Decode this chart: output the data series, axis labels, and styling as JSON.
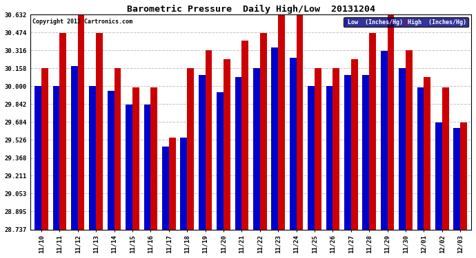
{
  "title": "Barometric Pressure  Daily High/Low  20131204",
  "copyright": "Copyright 2013 Cartronics.com",
  "categories": [
    "11/10",
    "11/11",
    "11/12",
    "11/13",
    "11/14",
    "11/15",
    "11/16",
    "11/17",
    "11/18",
    "11/19",
    "11/20",
    "11/21",
    "11/22",
    "11/23",
    "11/24",
    "11/25",
    "11/26",
    "11/27",
    "11/28",
    "11/29",
    "11/30",
    "12/01",
    "12/02",
    "12/03"
  ],
  "low_values": [
    30.0,
    30.0,
    30.18,
    30.0,
    29.96,
    29.84,
    29.84,
    29.47,
    29.55,
    30.1,
    29.95,
    30.08,
    30.16,
    30.34,
    30.25,
    30.0,
    30.0,
    30.1,
    30.1,
    30.31,
    30.16,
    29.99,
    29.68,
    29.63
  ],
  "high_values": [
    30.16,
    30.47,
    30.63,
    30.47,
    30.16,
    29.99,
    29.99,
    29.55,
    30.16,
    30.32,
    30.24,
    30.4,
    30.47,
    30.63,
    30.63,
    30.16,
    30.16,
    30.24,
    30.47,
    30.63,
    30.32,
    30.08,
    29.99,
    29.68
  ],
  "ylim": [
    28.737,
    30.632
  ],
  "yticks": [
    28.737,
    28.895,
    29.053,
    29.211,
    29.368,
    29.526,
    29.684,
    29.842,
    30.0,
    30.158,
    30.316,
    30.474,
    30.632
  ],
  "low_color": "#0000cc",
  "high_color": "#cc0000",
  "bg_color": "#ffffff",
  "grid_color": "#bbbbbb",
  "title_fontsize": 9.5,
  "legend_low_label": "Low  (Inches/Hg)",
  "legend_high_label": "High  (Inches/Hg)"
}
